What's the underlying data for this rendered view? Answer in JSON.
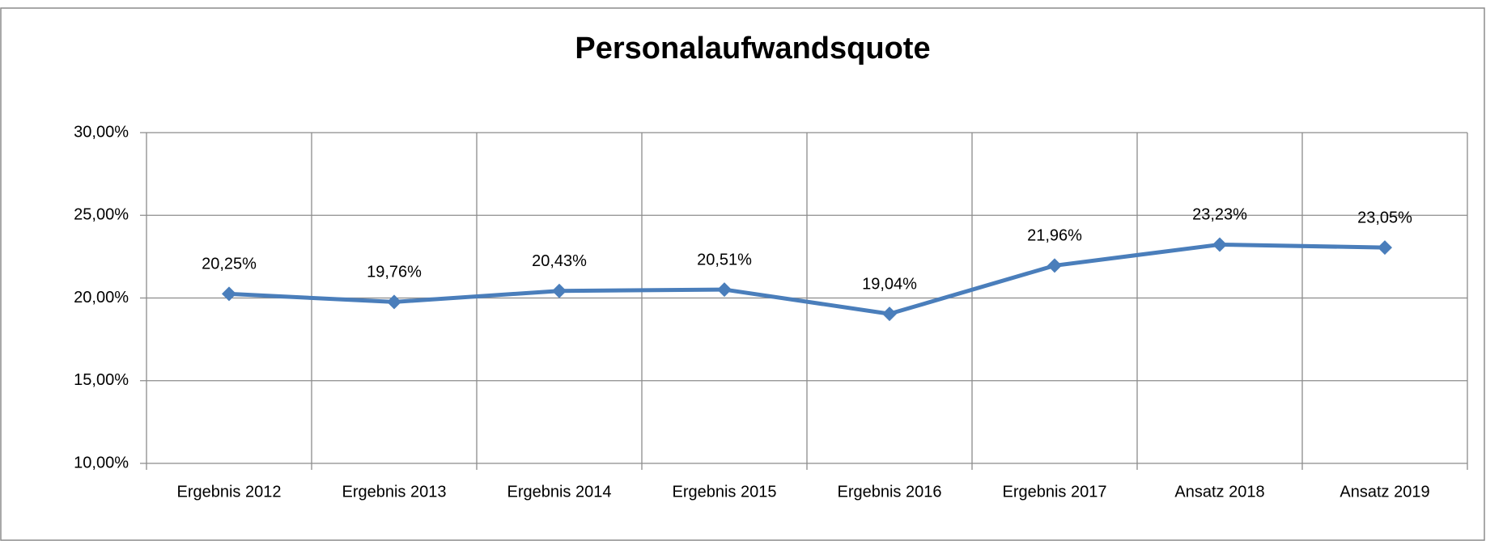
{
  "chart_data": {
    "type": "line",
    "title": "Personalaufwandsquote",
    "categories": [
      "Ergebnis 2012",
      "Ergebnis 2013",
      "Ergebnis 2014",
      "Ergebnis 2015",
      "Ergebnis 2016",
      "Ergebnis 2017",
      "Ansatz 2018",
      "Ansatz 2019"
    ],
    "series": [
      {
        "name": "Personalaufwandsquote",
        "color": "#4a7ebb",
        "values": [
          20.25,
          19.76,
          20.43,
          20.51,
          19.04,
          21.96,
          23.23,
          23.05
        ],
        "value_labels": [
          "20,25%",
          "19,76%",
          "20,43%",
          "20,51%",
          "19,04%",
          "21,96%",
          "23,23%",
          "23,05%"
        ]
      }
    ],
    "ylim": [
      10,
      30
    ],
    "yticks": [
      {
        "value": 10,
        "label": "10,00%"
      },
      {
        "value": 15,
        "label": "15,00%"
      },
      {
        "value": 20,
        "label": "20,00%"
      },
      {
        "value": 25,
        "label": "25,00%"
      },
      {
        "value": 30,
        "label": "30,00%"
      }
    ],
    "grid": true
  }
}
